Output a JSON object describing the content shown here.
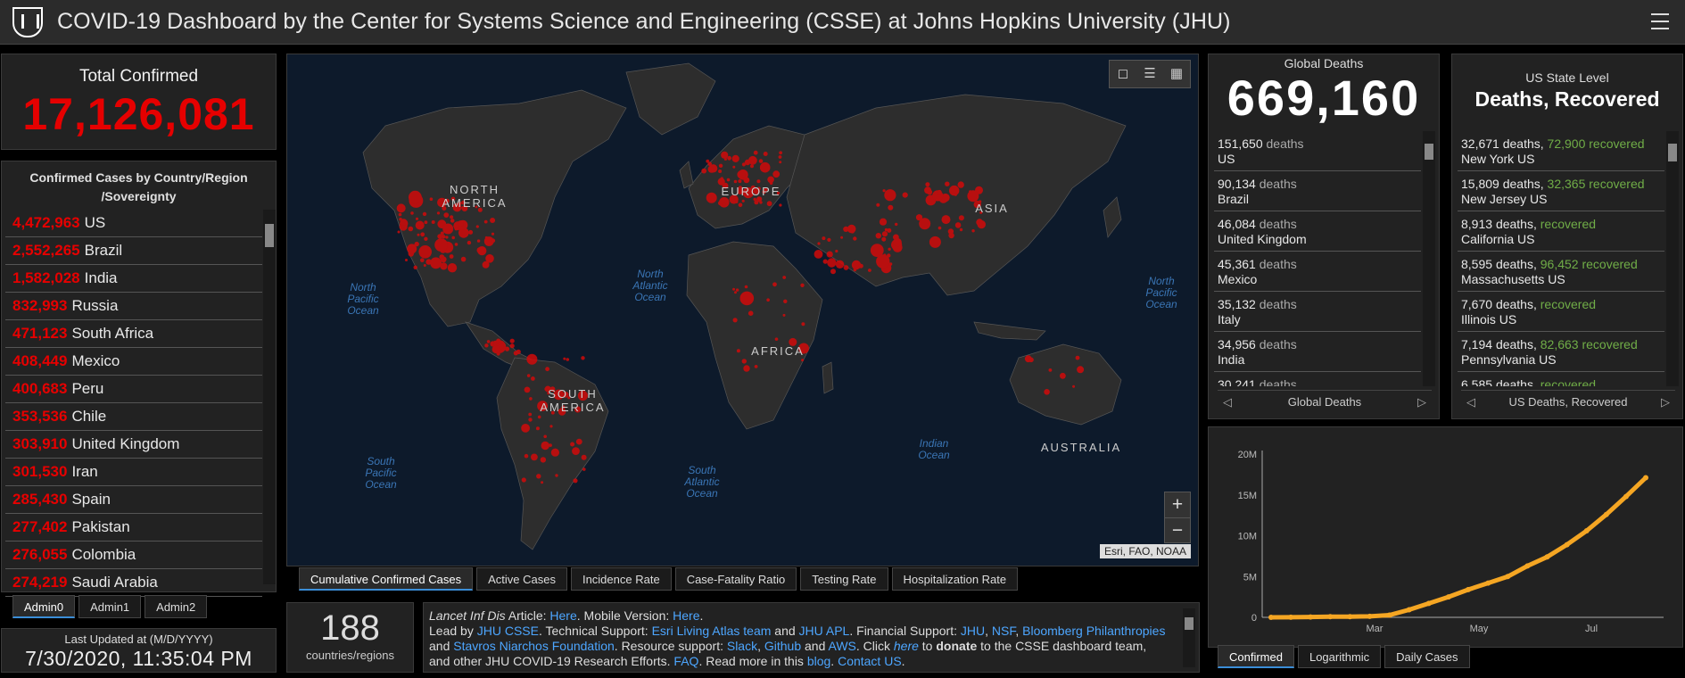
{
  "header": {
    "title": "COVID-19 Dashboard by the Center for Systems Science and Engineering (CSSE) at Johns Hopkins University (JHU)"
  },
  "total_confirmed": {
    "label": "Total Confirmed",
    "value": "17,126,081"
  },
  "country_list": {
    "header": "Confirmed Cases by Country/Region /Sovereignty",
    "rows": [
      {
        "value": "4,472,963",
        "name": "US"
      },
      {
        "value": "2,552,265",
        "name": "Brazil"
      },
      {
        "value": "1,582,028",
        "name": "India"
      },
      {
        "value": "832,993",
        "name": "Russia"
      },
      {
        "value": "471,123",
        "name": "South Africa"
      },
      {
        "value": "408,449",
        "name": "Mexico"
      },
      {
        "value": "400,683",
        "name": "Peru"
      },
      {
        "value": "353,536",
        "name": "Chile"
      },
      {
        "value": "303,910",
        "name": "United Kingdom"
      },
      {
        "value": "301,530",
        "name": "Iran"
      },
      {
        "value": "285,430",
        "name": "Spain"
      },
      {
        "value": "277,402",
        "name": "Pakistan"
      },
      {
        "value": "276,055",
        "name": "Colombia"
      },
      {
        "value": "274,219",
        "name": "Saudi Arabia"
      }
    ],
    "tabs": [
      "Admin0",
      "Admin1",
      "Admin2"
    ]
  },
  "last_updated": {
    "label": "Last Updated at (M/D/YYYY)",
    "value": "7/30/2020, 11:35:04 PM"
  },
  "map": {
    "labels": {
      "north_america": "NORTH AMERICA",
      "south_america": "SOUTH AMERICA",
      "europe": "EUROPE",
      "asia": "ASIA",
      "africa": "AFRICA",
      "australia": "AUSTRALIA"
    },
    "oceans": {
      "north_pacific_w": "North Pacific Ocean",
      "north_atlantic": "North Atlantic Ocean",
      "north_pacific_e": "North Pacific Ocean",
      "south_pacific": "South Pacific Ocean",
      "south_atlantic": "South Atlantic Ocean",
      "indian": "Indian Ocean"
    },
    "attribution": "Esri, FAO, NOAA",
    "zoom_in": "+",
    "zoom_out": "−"
  },
  "map_tabs": [
    "Cumulative Confirmed Cases",
    "Active Cases",
    "Incidence Rate",
    "Case-Fatality Ratio",
    "Testing Rate",
    "Hospitalization Rate"
  ],
  "countries_count": {
    "value": "188",
    "label": "countries/regions"
  },
  "info": {
    "t1": "Lancet Inf Dis",
    "t2": " Article: ",
    "l_here1": "Here",
    "t3": ". Mobile Version: ",
    "l_here2": "Here",
    "t4": ".",
    "t5": "Lead by ",
    "l_csse": "JHU CSSE",
    "t6": ". Technical Support: ",
    "l_esri": "Esri Living Atlas team",
    "t7": " and ",
    "l_apl": "JHU APL",
    "t8": ". Financial Support: ",
    "l_jhu": "JHU",
    "t9": ", ",
    "l_nsf": "NSF",
    "t10": ", ",
    "l_bloom": "Bloomberg Philanthropies",
    "t11": "and ",
    "l_stav": "Stavros Niarchos Foundation",
    "t12": ". Resource support: ",
    "l_slack": "Slack",
    "t13": ", ",
    "l_github": "Github",
    "t14": " and ",
    "l_aws": "AWS",
    "t15": ". Click ",
    "l_here3": "here",
    "t16": " to ",
    "t_donate": "donate",
    "t17": " to the CSSE dashboard team,",
    "t18": "and other JHU COVID-19 Research Efforts. ",
    "l_faq": "FAQ",
    "t19": ". Read more in this ",
    "l_blog": "blog",
    "t20": ". ",
    "l_contact": "Contact US",
    "t21": "."
  },
  "global_deaths": {
    "label": "Global Deaths",
    "value": "669,160",
    "word": "deaths",
    "rows": [
      {
        "value": "151,650",
        "name": "US"
      },
      {
        "value": "90,134",
        "name": "Brazil"
      },
      {
        "value": "46,084",
        "name": "United Kingdom"
      },
      {
        "value": "45,361",
        "name": "Mexico"
      },
      {
        "value": "35,132",
        "name": "Italy"
      },
      {
        "value": "34,956",
        "name": "India"
      },
      {
        "value": "30,241",
        "name": ""
      }
    ],
    "pager": "Global Deaths"
  },
  "us_state": {
    "label": "US State Level",
    "title": "Deaths, Recovered",
    "deaths_word": "deaths,",
    "recovered_word": "recovered",
    "rows": [
      {
        "deaths": "32,671",
        "recovered": "72,900",
        "name": "New York US"
      },
      {
        "deaths": "15,809",
        "recovered": "32,365",
        "name": "New Jersey US"
      },
      {
        "deaths": "8,913",
        "recovered": "",
        "name": "California US"
      },
      {
        "deaths": "8,595",
        "recovered": "96,452",
        "name": "Massachusetts US"
      },
      {
        "deaths": "7,670",
        "recovered": "",
        "name": "Illinois US"
      },
      {
        "deaths": "7,194",
        "recovered": "82,663",
        "name": "Pennsylvania US"
      },
      {
        "deaths": "6,585",
        "recovered": "",
        "name": ""
      }
    ],
    "pager": "US Deaths, Recovered"
  },
  "chart_tabs": [
    "Confirmed",
    "Logarithmic",
    "Daily Cases"
  ],
  "colors": {
    "confirmed": "#e60000",
    "recovered": "#70ad47",
    "line": "#f5a623",
    "link": "#4da6ff"
  },
  "chart_data": {
    "type": "line",
    "x": [
      "Jan 22",
      "Feb 1",
      "Feb 10",
      "Feb 20",
      "Mar 1",
      "Mar 10",
      "Mar 20",
      "Apr 1",
      "Apr 10",
      "Apr 20",
      "May 1",
      "May 10",
      "May 20",
      "Jun 1",
      "Jun 10",
      "Jun 20",
      "Jul 1",
      "Jul 10",
      "Jul 20",
      "Jul 30"
    ],
    "values": [
      0.0006,
      0.012,
      0.043,
      0.077,
      0.09,
      0.12,
      0.27,
      0.93,
      1.7,
      2.5,
      3.4,
      4.2,
      5.0,
      6.3,
      7.4,
      8.9,
      10.6,
      12.6,
      14.8,
      17.1
    ],
    "unit": "M",
    "xticks": [
      "Mar",
      "May",
      "Jul"
    ],
    "yticks": [
      "20M",
      "15M",
      "10M",
      "5M",
      "0"
    ],
    "ylim": [
      0,
      20
    ],
    "grid": false
  }
}
